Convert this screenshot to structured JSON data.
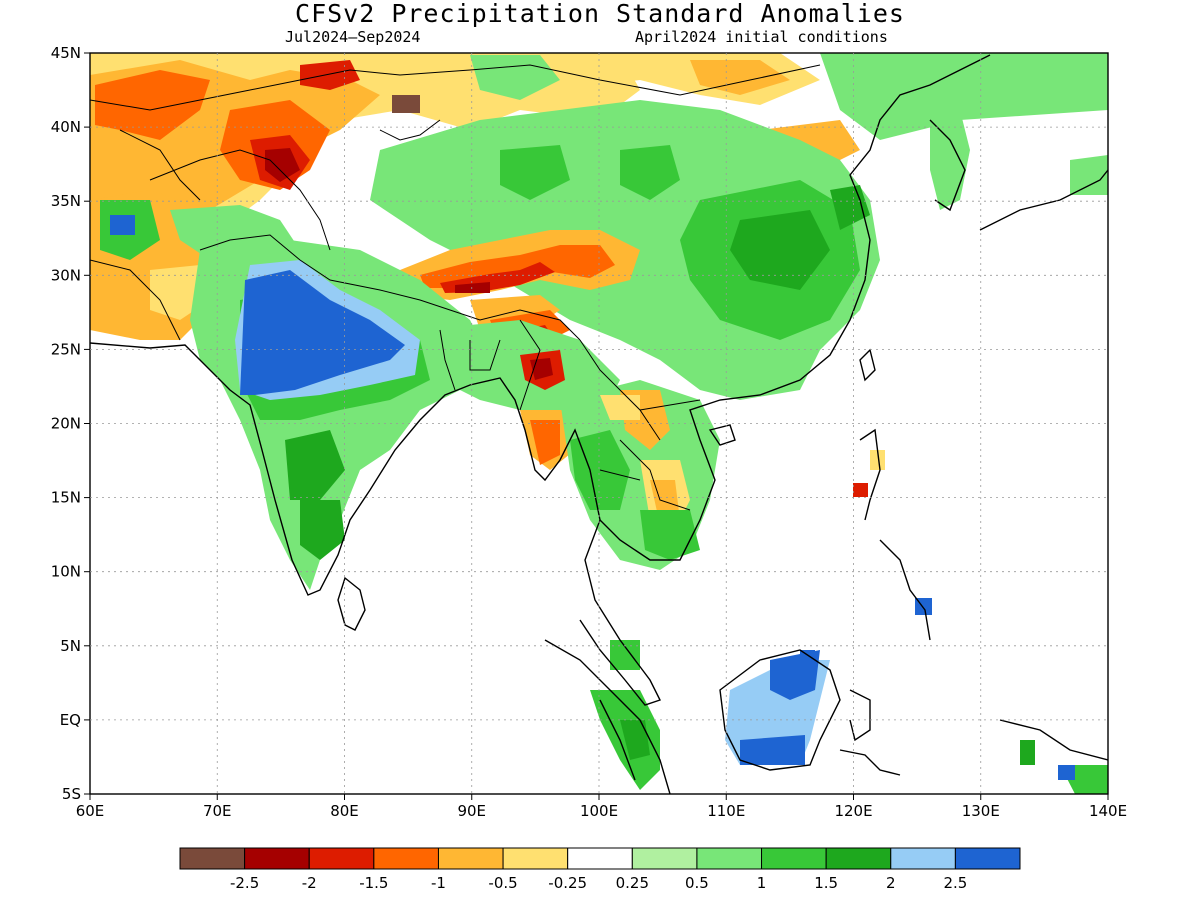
{
  "header": {
    "title": "CFSv2 Precipitation Standard Anomalies",
    "period": "Jul2024–Sep2024",
    "init": "April2024 initial conditions"
  },
  "axes": {
    "lon_labels": [
      "60E",
      "70E",
      "80E",
      "90E",
      "100E",
      "110E",
      "120E",
      "130E",
      "140E"
    ],
    "lat_labels": [
      "45N",
      "40N",
      "35N",
      "30N",
      "25N",
      "20N",
      "15N",
      "10N",
      "5N",
      "EQ",
      "5S"
    ]
  },
  "colorbar": {
    "colors": [
      "#7a4a3a",
      "#a50000",
      "#dd1c00",
      "#ff6600",
      "#ffb733",
      "#ffe070",
      "#ffffff",
      "#b0f0a0",
      "#78e678",
      "#38c838",
      "#1ea81e",
      "#96ccf5",
      "#1e64d2"
    ],
    "labels": [
      "-2.5",
      "-2",
      "-1.5",
      "-1",
      "-0.5",
      "-0.25",
      "0.25",
      "0.5",
      "1",
      "1.5",
      "2",
      "2.5"
    ]
  },
  "palette": {
    "lightgreen": "#b0f0a0",
    "green": "#78e678",
    "midgreen": "#38c838",
    "darkgreen": "#1ea81e",
    "lightblue": "#96ccf5",
    "blue": "#1e64d2",
    "yellow": "#ffe070",
    "lightorange": "#ffb733",
    "orange": "#ff6600",
    "red": "#dd1c00",
    "darkred": "#a50000",
    "brown": "#7a4a3a"
  }
}
